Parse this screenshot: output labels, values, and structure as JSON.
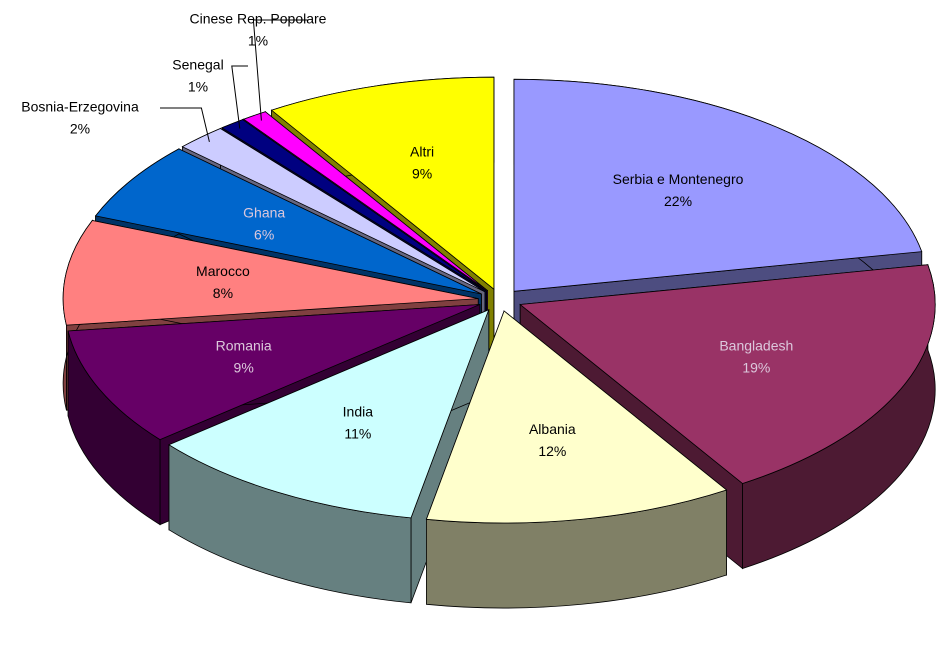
{
  "chart_data": {
    "type": "pie",
    "categories": [
      "Serbia e Montenegro",
      "Bangladesh",
      "Albania",
      "India",
      "Romania",
      "Marocco",
      "Ghana",
      "Bosnia-Erzegovina",
      "Senegal",
      "Cinese Rep. Popolare",
      "Altri"
    ],
    "values": [
      22,
      19,
      12,
      11,
      9,
      8,
      6,
      2,
      1,
      1,
      9
    ],
    "value_labels": [
      "22%",
      "19%",
      "12%",
      "11%",
      "9%",
      "8%",
      "6%",
      "2%",
      "1%",
      "1%",
      "9%"
    ],
    "colors": [
      "#9999ff",
      "#993366",
      "#ffffcc",
      "#ccffff",
      "#660066",
      "#ff8080",
      "#0066cc",
      "#ccccff",
      "#000080",
      "#ff00ff",
      "#ffff00"
    ]
  }
}
